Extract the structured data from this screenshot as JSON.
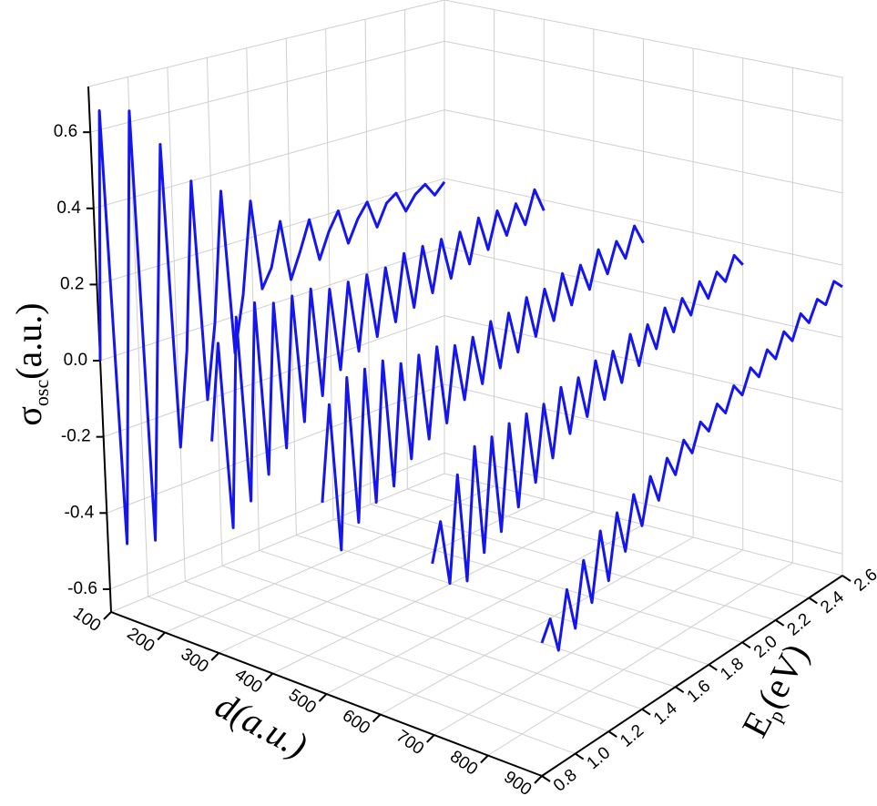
{
  "chart_data": {
    "type": "waterfall3d",
    "xlabel": "d(a.u.)",
    "ylabel": {
      "symbol": "E",
      "sub": "p",
      "unit": "(eV)"
    },
    "zlabel": {
      "symbol": "σ",
      "sub": "osc",
      "unit": "(a.u.)"
    },
    "xlim": [
      100,
      900
    ],
    "xticks": [
      100,
      200,
      300,
      400,
      500,
      600,
      700,
      800,
      900
    ],
    "ylim": [
      0.8,
      2.6
    ],
    "yticks": [
      0.8,
      {
        "value": 1,
        "label": "1.0"
      },
      1.2,
      1.4,
      1.6,
      1.8,
      {
        "value": 2,
        "label": "2.0"
      },
      2.2,
      2.4,
      2.6
    ],
    "zlim": [
      -0.66,
      0.72
    ],
    "zticks": [
      -0.6,
      -0.4,
      -0.2,
      {
        "value": 0,
        "label": "0.0"
      },
      0.2,
      0.4,
      0.6
    ],
    "grid": true,
    "y": [
      0.8,
      0.85,
      0.9,
      0.95,
      1.0,
      1.05,
      1.1,
      1.15,
      1.2,
      1.25,
      1.3,
      1.35,
      1.4,
      1.45,
      1.5,
      1.55,
      1.6,
      1.65,
      1.7,
      1.75,
      1.8,
      1.85,
      1.9,
      1.95,
      2.0,
      2.05,
      2.1,
      2.15,
      2.2,
      2.25,
      2.3,
      2.35,
      2.4,
      2.45,
      2.5,
      2.55,
      2.6
    ],
    "series": [
      {
        "d": 100,
        "color": "#1515ee",
        "values": [
          0.0,
          0.65,
          -0.5,
          0.05,
          0.63,
          -0.52,
          0.0,
          0.52,
          -0.3,
          -0.05,
          0.4,
          -0.2,
          0.0,
          0.35,
          -0.1,
          0.05,
          0.3,
          0.05,
          0.1,
          0.22,
          0.05,
          0.12,
          0.2,
          0.08,
          0.15,
          0.2,
          0.1,
          0.16,
          0.2,
          0.12,
          0.18,
          0.2,
          0.14,
          0.18,
          0.2,
          0.16,
          0.19
        ]
      },
      {
        "d": 300,
        "color": "#1515ee",
        "values": [
          -0.1,
          0.15,
          -0.35,
          0.2,
          -0.3,
          0.22,
          -0.25,
          0.2,
          -0.2,
          0.2,
          -0.15,
          0.2,
          -0.1,
          0.18,
          -0.05,
          0.18,
          -0.02,
          0.18,
          0.0,
          0.18,
          0.02,
          0.2,
          0.04,
          0.2,
          0.06,
          0.2,
          0.08,
          0.2,
          0.1,
          0.22,
          0.12,
          0.22,
          0.14,
          0.22,
          0.15,
          0.24,
          0.17
        ]
      },
      {
        "d": 500,
        "color": "#1515ee",
        "values": [
          -0.15,
          0.1,
          -0.3,
          0.15,
          -0.25,
          0.15,
          -0.22,
          0.15,
          -0.2,
          0.12,
          -0.15,
          0.12,
          -0.12,
          0.12,
          -0.1,
          0.1,
          -0.06,
          0.1,
          -0.04,
          0.12,
          -0.02,
          0.12,
          0.0,
          0.14,
          0.02,
          0.14,
          0.04,
          0.16,
          0.06,
          0.16,
          0.08,
          0.18,
          0.1,
          0.18,
          0.12,
          0.2,
          0.14
        ]
      },
      {
        "d": 700,
        "color": "#1515ee",
        "values": [
          -0.2,
          -0.1,
          -0.28,
          0.0,
          -0.3,
          0.05,
          -0.25,
          0.05,
          -0.22,
          0.06,
          -0.18,
          0.06,
          -0.14,
          0.06,
          -0.1,
          0.08,
          -0.06,
          0.08,
          -0.04,
          0.1,
          -0.02,
          0.1,
          0.0,
          0.12,
          0.02,
          0.12,
          0.04,
          0.14,
          0.06,
          0.14,
          0.08,
          0.16,
          0.1,
          0.16,
          0.12,
          0.18,
          0.14
        ]
      },
      {
        "d": 900,
        "color": "#1515ee",
        "values": [
          -0.3,
          -0.25,
          -0.35,
          -0.2,
          -0.32,
          -0.15,
          -0.28,
          -0.1,
          -0.25,
          -0.08,
          -0.2,
          -0.06,
          -0.16,
          -0.04,
          -0.12,
          -0.02,
          -0.08,
          0.0,
          -0.05,
          0.02,
          -0.02,
          0.04,
          0.0,
          0.06,
          0.02,
          0.08,
          0.04,
          0.1,
          0.06,
          0.12,
          0.08,
          0.14,
          0.1,
          0.15,
          0.12,
          0.17,
          0.14
        ]
      }
    ]
  }
}
